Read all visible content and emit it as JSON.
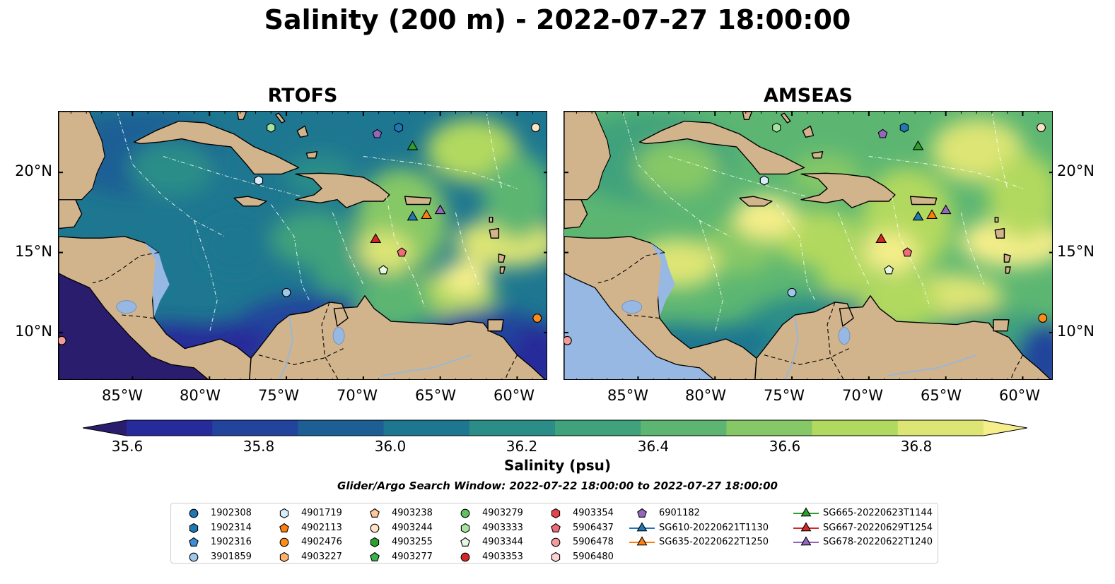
{
  "title": "Salinity (200 m) - 2022-07-27 18:00:00",
  "panels": [
    {
      "title": "RTOFS"
    },
    {
      "title": "AMSEAS"
    }
  ],
  "axes": {
    "lon_ticks": [
      "85°W",
      "80°W",
      "75°W",
      "70°W",
      "65°W",
      "60°W"
    ],
    "lat_ticks": [
      "20°N",
      "15°N",
      "10°N"
    ]
  },
  "colorbar": {
    "label": "Salinity (psu)",
    "ticks": [
      "35.6",
      "35.8",
      "36.0",
      "36.2",
      "36.4",
      "36.6",
      "36.8"
    ],
    "colors": [
      "#2a1d6e",
      "#262a9a",
      "#22449c",
      "#1d5f95",
      "#1e7790",
      "#2b8d88",
      "#3fa27c",
      "#5cb672",
      "#86c866",
      "#b2d95f",
      "#dde575",
      "#f5ee8a"
    ],
    "extend": "both"
  },
  "search_window": "Glider/Argo Search Window: 2022-07-22 18:00:00 to 2022-07-27 18:00:00",
  "legend": [
    {
      "label": "1902308",
      "marker": "circle",
      "color": "#1f77b4"
    },
    {
      "label": "1902314",
      "marker": "hexagon",
      "color": "#1f77b4"
    },
    {
      "label": "1902316",
      "marker": "pentagon",
      "color": "#3a8fd8"
    },
    {
      "label": "3901859",
      "marker": "circle",
      "color": "#9fc7ea"
    },
    {
      "label": "4901719",
      "marker": "hexagon",
      "color": "#d9ecfb"
    },
    {
      "label": "4902113",
      "marker": "pentagon",
      "color": "#ff7f0e"
    },
    {
      "label": "4902476",
      "marker": "circle",
      "color": "#ff8c1a"
    },
    {
      "label": "4903227",
      "marker": "hexagon",
      "color": "#ffb26b"
    },
    {
      "label": "4903238",
      "marker": "pentagon",
      "color": "#ffc896"
    },
    {
      "label": "4903244",
      "marker": "circle",
      "color": "#ffe3c8"
    },
    {
      "label": "4903255",
      "marker": "hexagon",
      "color": "#2ca02c"
    },
    {
      "label": "4903277",
      "marker": "pentagon",
      "color": "#3bb54a"
    },
    {
      "label": "4903279",
      "marker": "circle",
      "color": "#5ec25e"
    },
    {
      "label": "4903333",
      "marker": "hexagon",
      "color": "#a6e3a1"
    },
    {
      "label": "4903344",
      "marker": "pentagon",
      "color": "#e6f8e2"
    },
    {
      "label": "4903353",
      "marker": "circle",
      "color": "#d62728"
    },
    {
      "label": "4903354",
      "marker": "hexagon",
      "color": "#e8434a"
    },
    {
      "label": "5906437",
      "marker": "pentagon",
      "color": "#f06a78"
    },
    {
      "label": "5906478",
      "marker": "circle",
      "color": "#f49a9a"
    },
    {
      "label": "5906480",
      "marker": "hexagon",
      "color": "#fbd3d3"
    },
    {
      "label": "6901182",
      "marker": "pentagon",
      "color": "#9467bd"
    },
    {
      "label": "SG610-20220621T1130",
      "marker": "triangle",
      "color": "#1f77b4",
      "line": true
    },
    {
      "label": "SG635-20220622T1250",
      "marker": "triangle",
      "color": "#ff7f0e",
      "line": true
    },
    {
      "label": "SG665-20220623T1144",
      "marker": "triangle",
      "color": "#2ca02c",
      "line": true
    },
    {
      "label": "SG667-20220629T1254",
      "marker": "triangle",
      "color": "#d62728",
      "line": true
    },
    {
      "label": "SG678-20220622T1240",
      "marker": "triangle",
      "color": "#9467bd",
      "line": true
    }
  ],
  "observations": [
    {
      "id": "SG665-20220623T1144",
      "lon": -66.8,
      "lat": 21.6,
      "marker": "triangle",
      "color": "#2ca02c"
    },
    {
      "id": "SG610-20220621T1130",
      "lon": -66.8,
      "lat": 17.2,
      "marker": "triangle",
      "color": "#1f77b4"
    },
    {
      "id": "SG635-20220622T1250",
      "lon": -65.9,
      "lat": 17.3,
      "marker": "triangle",
      "color": "#ff7f0e"
    },
    {
      "id": "SG678-20220622T1240",
      "lon": -65.0,
      "lat": 17.6,
      "marker": "triangle",
      "color": "#9467bd"
    },
    {
      "id": "SG667-20220629T1254",
      "lon": -69.2,
      "lat": 15.8,
      "marker": "triangle",
      "color": "#d62728"
    },
    {
      "id": "6901182",
      "lon": -69.1,
      "lat": 22.4,
      "marker": "pentagon",
      "color": "#9467bd"
    },
    {
      "id": "1902314",
      "lon": -67.7,
      "lat": 22.8,
      "marker": "hexagon",
      "color": "#1f77b4"
    },
    {
      "id": "4903333",
      "lon": -76.0,
      "lat": 22.8,
      "marker": "hexagon",
      "color": "#a6e3a1"
    },
    {
      "id": "4901719",
      "lon": -76.8,
      "lat": 19.5,
      "marker": "hexagon",
      "color": "#d9ecfb"
    },
    {
      "id": "5906437",
      "lon": -67.5,
      "lat": 15.0,
      "marker": "pentagon",
      "color": "#f06a78"
    },
    {
      "id": "4903344",
      "lon": -68.7,
      "lat": 13.9,
      "marker": "pentagon",
      "color": "#e6f8e2"
    },
    {
      "id": "3901859",
      "lon": -75.0,
      "lat": 12.5,
      "marker": "circle",
      "color": "#9fc7ea"
    },
    {
      "id": "5906478",
      "lon": -89.6,
      "lat": 9.5,
      "marker": "circle",
      "color": "#f49a9a"
    },
    {
      "id": "4902476",
      "lon": -58.7,
      "lat": 10.9,
      "marker": "circle",
      "color": "#ff8c1a"
    },
    {
      "id": "4903244",
      "lon": -58.8,
      "lat": 22.8,
      "marker": "circle",
      "color": "#ffe3c8"
    }
  ]
}
